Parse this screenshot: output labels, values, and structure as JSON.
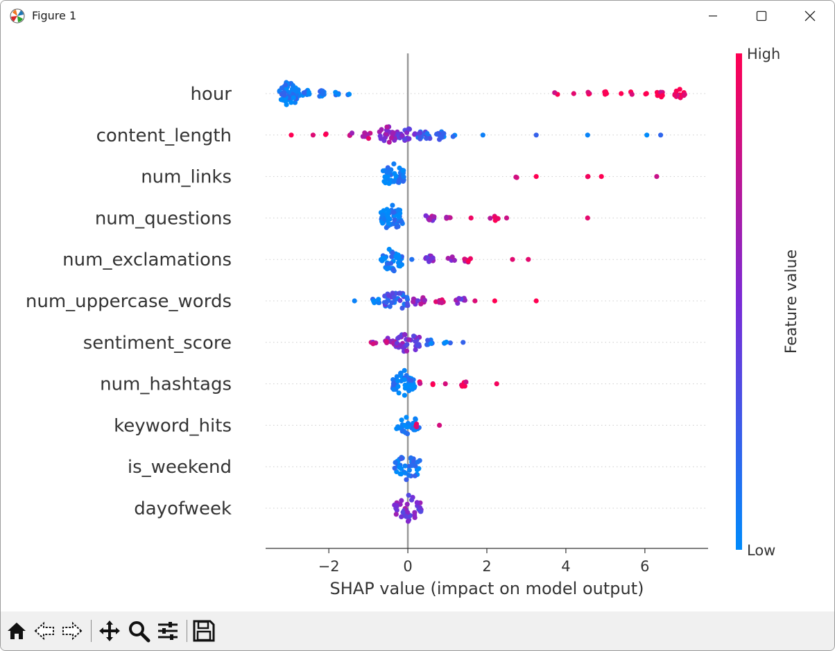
{
  "window": {
    "title": "Figure 1"
  },
  "colors": {
    "low": "#008bfb",
    "mid": "#7a2bd6",
    "high": "#ff0052",
    "axis": "#333333",
    "zero_line": "#999999",
    "row_line": "#cccccc"
  },
  "toolbar": {
    "items": [
      "home-icon",
      "back-arrow-icon",
      "forward-arrow-icon",
      "pan-icon",
      "zoom-icon",
      "configure-subplots-icon",
      "save-icon"
    ]
  },
  "chart_data": {
    "type": "scatter",
    "plot_kind": "shap beeswarm summary",
    "xlabel": "SHAP value (impact on model output)",
    "xlim": [
      -3.6,
      7.6
    ],
    "xticks": [
      -2,
      0,
      2,
      4,
      6
    ],
    "xtick_labels": [
      "−2",
      "0",
      "2",
      "4",
      "6"
    ],
    "colorbar": {
      "label": "Feature value",
      "high_label": "High",
      "low_label": "Low"
    },
    "features": [
      {
        "name": "hour",
        "points": [
          {
            "x": -3.0,
            "v": 0.05,
            "n": 60,
            "spread": 0.25
          },
          {
            "x": -2.6,
            "v": 0.05,
            "n": 12,
            "spread": 0.12
          },
          {
            "x": -2.2,
            "v": 0.08,
            "n": 8,
            "spread": 0.08
          },
          {
            "x": -1.8,
            "v": 0.1,
            "n": 4,
            "spread": 0.05
          },
          {
            "x": -1.5,
            "v": 0.1,
            "n": 2,
            "spread": 0.04
          },
          {
            "x": 3.75,
            "v": 0.95,
            "n": 2,
            "spread": 0.06
          },
          {
            "x": 4.2,
            "v": 0.95,
            "n": 1,
            "spread": 0
          },
          {
            "x": 4.6,
            "v": 0.95,
            "n": 3,
            "spread": 0.06
          },
          {
            "x": 5.0,
            "v": 0.95,
            "n": 4,
            "spread": 0.05
          },
          {
            "x": 5.4,
            "v": 0.95,
            "n": 1,
            "spread": 0
          },
          {
            "x": 5.65,
            "v": 0.95,
            "n": 2,
            "spread": 0.04
          },
          {
            "x": 6.05,
            "v": 0.95,
            "n": 2,
            "spread": 0.05
          },
          {
            "x": 6.4,
            "v": 0.95,
            "n": 8,
            "spread": 0.1
          },
          {
            "x": 6.9,
            "v": 0.95,
            "n": 12,
            "spread": 0.15
          }
        ]
      },
      {
        "name": "content_length",
        "points": [
          {
            "x": -2.95,
            "v": 0.95,
            "n": 1,
            "spread": 0
          },
          {
            "x": -2.4,
            "v": 0.95,
            "n": 1,
            "spread": 0
          },
          {
            "x": -2.05,
            "v": 0.95,
            "n": 2,
            "spread": 0.04
          },
          {
            "x": -1.4,
            "v": 0.75,
            "n": 3,
            "spread": 0.08
          },
          {
            "x": -1.0,
            "v": 0.8,
            "n": 8,
            "spread": 0.15
          },
          {
            "x": -0.5,
            "v": 0.55,
            "n": 25,
            "spread": 0.25
          },
          {
            "x": 0.0,
            "v": 0.45,
            "n": 18,
            "spread": 0.22
          },
          {
            "x": 0.4,
            "v": 0.25,
            "n": 16,
            "spread": 0.2
          },
          {
            "x": 0.8,
            "v": 0.15,
            "n": 10,
            "spread": 0.12
          },
          {
            "x": 1.15,
            "v": 0.05,
            "n": 2,
            "spread": 0.04
          },
          {
            "x": 1.9,
            "v": 0.05,
            "n": 1,
            "spread": 0
          },
          {
            "x": 3.25,
            "v": 0.05,
            "n": 1,
            "spread": 0
          },
          {
            "x": 4.55,
            "v": 0.05,
            "n": 1,
            "spread": 0
          },
          {
            "x": 6.05,
            "v": 0.05,
            "n": 1,
            "spread": 0
          },
          {
            "x": 6.4,
            "v": 0.05,
            "n": 1,
            "spread": 0
          }
        ]
      },
      {
        "name": "num_links",
        "points": [
          {
            "x": -0.35,
            "v": 0.05,
            "n": 40,
            "spread": 0.28
          },
          {
            "x": 2.75,
            "v": 0.95,
            "n": 2,
            "spread": 0.04
          },
          {
            "x": 3.25,
            "v": 0.95,
            "n": 1,
            "spread": 0
          },
          {
            "x": 4.6,
            "v": 0.95,
            "n": 2,
            "spread": 0.05
          },
          {
            "x": 4.9,
            "v": 0.95,
            "n": 1,
            "spread": 0
          },
          {
            "x": 6.3,
            "v": 0.95,
            "n": 1,
            "spread": 0
          }
        ]
      },
      {
        "name": "num_questions",
        "points": [
          {
            "x": -0.4,
            "v": 0.05,
            "n": 55,
            "spread": 0.28
          },
          {
            "x": 0.55,
            "v": 0.6,
            "n": 10,
            "spread": 0.12
          },
          {
            "x": 1.05,
            "v": 0.7,
            "n": 4,
            "spread": 0.08
          },
          {
            "x": 1.6,
            "v": 0.95,
            "n": 1,
            "spread": 0
          },
          {
            "x": 2.2,
            "v": 0.9,
            "n": 6,
            "spread": 0.12
          },
          {
            "x": 2.5,
            "v": 0.95,
            "n": 1,
            "spread": 0
          },
          {
            "x": 4.55,
            "v": 0.95,
            "n": 1,
            "spread": 0
          }
        ]
      },
      {
        "name": "num_exclamations",
        "points": [
          {
            "x": -0.4,
            "v": 0.05,
            "n": 50,
            "spread": 0.28
          },
          {
            "x": 0.1,
            "v": 0.05,
            "n": 1,
            "spread": 0
          },
          {
            "x": 0.55,
            "v": 0.55,
            "n": 10,
            "spread": 0.1
          },
          {
            "x": 1.1,
            "v": 0.65,
            "n": 5,
            "spread": 0.1
          },
          {
            "x": 1.5,
            "v": 0.85,
            "n": 6,
            "spread": 0.1
          },
          {
            "x": 2.65,
            "v": 0.95,
            "n": 1,
            "spread": 0
          },
          {
            "x": 3.05,
            "v": 0.85,
            "n": 1,
            "spread": 0
          }
        ]
      },
      {
        "name": "num_uppercase_words",
        "points": [
          {
            "x": -1.35,
            "v": 0.05,
            "n": 1,
            "spread": 0
          },
          {
            "x": -0.8,
            "v": 0.1,
            "n": 8,
            "spread": 0.1
          },
          {
            "x": -0.3,
            "v": 0.25,
            "n": 35,
            "spread": 0.3
          },
          {
            "x": 0.3,
            "v": 0.6,
            "n": 12,
            "spread": 0.18
          },
          {
            "x": 0.8,
            "v": 0.8,
            "n": 8,
            "spread": 0.12
          },
          {
            "x": 1.35,
            "v": 0.5,
            "n": 8,
            "spread": 0.15
          },
          {
            "x": 1.7,
            "v": 0.95,
            "n": 1,
            "spread": 0
          },
          {
            "x": 2.2,
            "v": 0.95,
            "n": 1,
            "spread": 0
          },
          {
            "x": 3.25,
            "v": 0.95,
            "n": 1,
            "spread": 0
          }
        ]
      },
      {
        "name": "sentiment_score",
        "points": [
          {
            "x": -0.85,
            "v": 0.7,
            "n": 4,
            "spread": 0.1
          },
          {
            "x": -0.45,
            "v": 0.7,
            "n": 12,
            "spread": 0.18
          },
          {
            "x": 0.0,
            "v": 0.5,
            "n": 35,
            "spread": 0.3
          },
          {
            "x": 0.55,
            "v": 0.15,
            "n": 8,
            "spread": 0.1
          },
          {
            "x": 1.0,
            "v": 0.05,
            "n": 4,
            "spread": 0.08
          },
          {
            "x": 1.4,
            "v": 0.05,
            "n": 1,
            "spread": 0
          }
        ]
      },
      {
        "name": "num_hashtags",
        "points": [
          {
            "x": -0.1,
            "v": 0.05,
            "n": 50,
            "spread": 0.28
          },
          {
            "x": 0.3,
            "v": 0.95,
            "n": 2,
            "spread": 0.04
          },
          {
            "x": 0.65,
            "v": 0.95,
            "n": 2,
            "spread": 0.04
          },
          {
            "x": 0.95,
            "v": 0.95,
            "n": 1,
            "spread": 0
          },
          {
            "x": 1.4,
            "v": 0.95,
            "n": 6,
            "spread": 0.1
          },
          {
            "x": 2.25,
            "v": 0.95,
            "n": 1,
            "spread": 0
          }
        ]
      },
      {
        "name": "keyword_hits",
        "points": [
          {
            "x": 0.0,
            "v": 0.05,
            "n": 30,
            "spread": 0.3
          },
          {
            "x": 0.25,
            "v": 0.95,
            "n": 3,
            "spread": 0.06
          },
          {
            "x": 0.8,
            "v": 0.95,
            "n": 1,
            "spread": 0
          }
        ]
      },
      {
        "name": "is_weekend",
        "points": [
          {
            "x": 0.0,
            "v": 0.1,
            "n": 40,
            "spread": 0.34
          }
        ]
      },
      {
        "name": "dayofweek",
        "points": [
          {
            "x": 0.0,
            "v": 0.5,
            "n": 40,
            "spread": 0.34
          }
        ]
      }
    ]
  }
}
